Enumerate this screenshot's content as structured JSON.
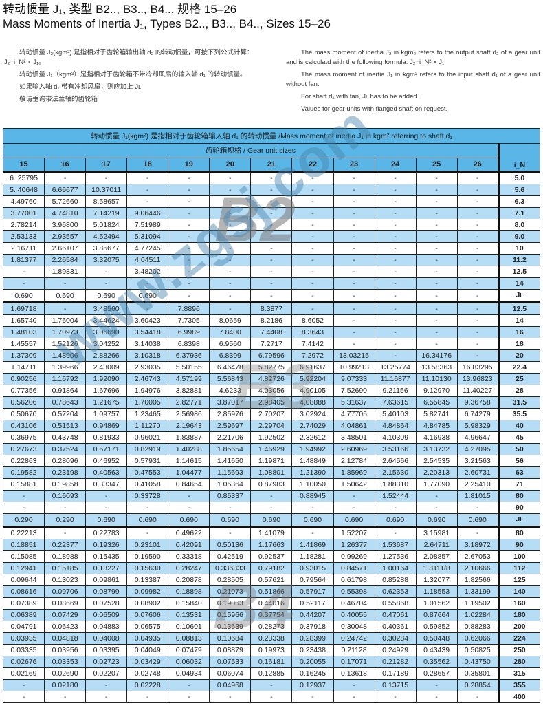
{
  "title_cn": "转动惯量 J₁, 类型 B2.., B3.., B4.., 规格 15–26",
  "title_en": "Mass Moments of Inertia J₁, Types B2.., B3.., B4.., Sizes 15–26",
  "intro_cn": [
    "转动惯量 J₂(kgm²) 是指相对于齿轮箱输出轴 d₂ 的转动惯量，可按下列公式计算：J₂=i_N² × J₁。",
    "转动惯量 J₁（kgm²）是指相对于齿轮箱不带冷却风扇的输入轴 d₁ 的转动惯量。",
    "如果输入轴 d₁ 带有冷却风扇，则应加上 Jʟ",
    "敬请垂询带法兰轴的齿轮箱"
  ],
  "intro_en": [
    "The mass moment of inertia J₂ in kgm₂ refers to the output shaft d₂ of a gear unit and is calculatd with the following formula: J₂=i_N² × J₁.",
    "The mass moment of inertia J₁ in kgm² refers to the input shaft d₁ of a gear unit without fan.",
    "For shaft d₁ with fan, Jʟ has to be added.",
    "Values for gear units with flanged shaft on request."
  ],
  "table": {
    "caption": "转动惯量 J₁(kgm²) 是指相对于齿轮箱输入轴 d₁ 的转动惯量 /Mass moment of inertia J₁ in kgm² referring to shaft d₁",
    "sizes_label": "齿轮箱规格 / Gear unit sizes",
    "columns": [
      "15",
      "16",
      "17",
      "18",
      "19",
      "20",
      "21",
      "22",
      "23",
      "24",
      "25",
      "26"
    ],
    "ratio_header": "i_N",
    "sections": [
      {
        "type": "B2",
        "rows": [
          {
            "i": "5.0",
            "v": [
              "6. 25795",
              "-",
              "-",
              "-",
              "-",
              "-",
              "-",
              "-",
              "-",
              "-",
              "-",
              "-"
            ]
          },
          {
            "i": "5.6",
            "v": [
              "5. 40648",
              "6.66677",
              "10.37011",
              "-",
              "-",
              "-",
              "-",
              "-",
              "-",
              "-",
              "-",
              "-"
            ]
          },
          {
            "i": "6.3",
            "v": [
              "4.49760",
              "5.72660",
              "8.58657",
              "-",
              "-",
              "-",
              "-",
              "-",
              "-",
              "-",
              "-",
              "-"
            ]
          },
          {
            "i": "7.1",
            "v": [
              "3.77001",
              "4.74810",
              "7.14219",
              "9.06446",
              "-",
              "-",
              "-",
              "-",
              "-",
              "-",
              "-",
              "-"
            ]
          },
          {
            "i": "8.0",
            "v": [
              "2.78214",
              "3.96800",
              "5.01824",
              "7.51989",
              "-",
              "-",
              "-",
              "-",
              "-",
              "-",
              "-",
              "-"
            ]
          },
          {
            "i": "9.0",
            "v": [
              "2.53133",
              "2.93557",
              "4.52494",
              "5.31094",
              "-",
              "-",
              "-",
              "-",
              "-",
              "-",
              "-",
              "-"
            ]
          },
          {
            "i": "10",
            "v": [
              "2.16711",
              "2.66107",
              "3.85677",
              "4.77245",
              "-",
              "-",
              "-",
              "-",
              "-",
              "-",
              "-",
              "-"
            ]
          },
          {
            "i": "11.2",
            "v": [
              "1.81377",
              "2.26584",
              "3.32075",
              "4.04511",
              "-",
              "-",
              "-",
              "-",
              "-",
              "-",
              "-",
              "-"
            ]
          },
          {
            "i": "12.5",
            "v": [
              "-",
              "1.89831",
              "-",
              "3.48202",
              "-",
              "-",
              "-",
              "-",
              "-",
              "-",
              "-",
              "-"
            ]
          },
          {
            "i": "14",
            "v": [
              "-",
              "-",
              "-",
              "-",
              "-",
              "-",
              "-",
              "-",
              "-",
              "-",
              "-",
              "-"
            ]
          },
          {
            "i": "JL",
            "v": [
              "0.690",
              "0.690",
              "0.690",
              "0.690",
              "-",
              "-",
              "-",
              "-",
              "-",
              "-",
              "-",
              "-"
            ]
          }
        ]
      },
      {
        "type": "B3",
        "rows": [
          {
            "i": "12.5",
            "v": [
              "1.69718",
              "-",
              "3.48560",
              "-",
              "7.8896",
              "-",
              "8.3877",
              "-",
              "-",
              "-",
              "-",
              "-"
            ]
          },
          {
            "i": "14",
            "v": [
              "1.65740",
              "1.76004",
              "3.44624",
              "3.60423",
              "7.7305",
              "8.0659",
              "8.2186",
              "8.6052",
              "-",
              "-",
              "-",
              "-"
            ]
          },
          {
            "i": "16",
            "v": [
              "1.48103",
              "1.70973",
              "3.06690",
              "3.54418",
              "6.9989",
              "7.8400",
              "7.4408",
              "8.3643",
              "-",
              "-",
              "-",
              "-"
            ]
          },
          {
            "i": "18",
            "v": [
              "1.45557",
              "1.52126",
              "3.04252",
              "3.14038",
              "6.8398",
              "6.9560",
              "7.2717",
              "7.4142",
              "-",
              "-",
              "-",
              "-"
            ]
          },
          {
            "i": "20",
            "v": [
              "1.37309",
              "1.48906",
              "2.88266",
              "3.10318",
              "6.37936",
              "6.8399",
              "6.79596",
              "7.2972",
              "13.03215",
              "-",
              "16.34176",
              "-"
            ]
          },
          {
            "i": "22.4",
            "v": [
              "1.14711",
              "1.39966",
              "2.43009",
              "2.93035",
              "5.50155",
              "6.46478",
              "5.82775",
              "6.91637",
              "10.99213",
              "13.25774",
              "13.58363",
              "16.83295"
            ]
          },
          {
            "i": "25",
            "v": [
              "0.90256",
              "1.16792",
              "1.92090",
              "2.46743",
              "4.57199",
              "5.56843",
              "4.82726",
              "5.92204",
              "9.07333",
              "11.16877",
              "11.10130",
              "13.96823"
            ]
          },
          {
            "i": "28",
            "v": [
              "0.77356",
              "0.91864",
              "1.67696",
              "1.94976",
              "3.82881",
              "4.6233",
              "4.03056",
              "4.90105",
              "7.52690",
              "9.21156",
              "9.12970",
              "11.40227"
            ]
          },
          {
            "i": "31.5",
            "v": [
              "0.56206",
              "0.78643",
              "1.21675",
              "1.70005",
              "2.82771",
              "3.87017",
              "2.98405",
              "4.08888",
              "5.31637",
              "7.63615",
              "6.55845",
              "9.36758"
            ]
          },
          {
            "i": "35.5",
            "v": [
              "0.50670",
              "0.57204",
              "1.09757",
              "1.23465",
              "2.56986",
              "2.85976",
              "2.70207",
              "3.02924",
              "4.77705",
              "5.40103",
              "5.82741",
              "6.74279"
            ]
          },
          {
            "i": "40",
            "v": [
              "0.43106",
              "0.51513",
              "0.94869",
              "1.11270",
              "2.19643",
              "2.59697",
              "2.29704",
              "2.74029",
              "4.04861",
              "4.84864",
              "4.84785",
              "5.98329"
            ]
          },
          {
            "i": "45",
            "v": [
              "0.36975",
              "0.43748",
              "0.81933",
              "0.96021",
              "1.83887",
              "2.21706",
              "1.92502",
              "2.32612",
              "3.48501",
              "4.10309",
              "4.16938",
              "4.96647"
            ]
          },
          {
            "i": "50",
            "v": [
              "0.27673",
              "0.37524",
              "0.57171",
              "0.82919",
              "1.40288",
              "1.85654",
              "1.46929",
              "1.94992",
              "2.60969",
              "3.53166",
              "3.13732",
              "4.27095"
            ]
          },
          {
            "i": "56",
            "v": [
              "0.22863",
              "0.28096",
              "0.46952",
              "0.57931",
              "1.14615",
              "1.41650",
              "1.19871",
              "1.48849",
              "2.12784",
              "2.64566",
              "2.54535",
              "3.21563"
            ]
          },
          {
            "i": "63",
            "v": [
              "0.19582",
              "0.23198",
              "0.40563",
              "0.47553",
              "1.04477",
              "1.15693",
              "1.08801",
              "1.21390",
              "1.85969",
              "2.15630",
              "2.20313",
              "2.60731"
            ]
          },
          {
            "i": "71",
            "v": [
              "0.15881",
              "0.19858",
              "0.33347",
              "0.41058",
              "0.84654",
              "1.05364",
              "0.87983",
              "1.10050",
              "1.50642",
              "1.88310",
              "1.77090",
              "2.25410"
            ]
          },
          {
            "i": "80",
            "v": [
              "-",
              "0.16093",
              "-",
              "0.33728",
              "-",
              "0.85337",
              "-",
              "0.88945",
              "-",
              "1.52444",
              "-",
              "1.81015"
            ]
          },
          {
            "i": "90",
            "v": [
              "-",
              "-",
              "-",
              "-",
              "-",
              "-",
              "-",
              "-",
              "-",
              "-",
              "-",
              "-"
            ]
          },
          {
            "i": "JL",
            "v": [
              "0.290",
              "0.290",
              "0.690",
              "0.690",
              "0.690",
              "0.690",
              "0.690",
              "0.690",
              "0.690",
              "0.690",
              "0.690",
              "0.690"
            ]
          }
        ]
      },
      {
        "type": "B4",
        "rows": [
          {
            "i": "80",
            "v": [
              "0.22213",
              "-",
              "0.22783",
              "-",
              "0.49622",
              "-",
              "1.41079",
              "-",
              "1.52207",
              "-",
              "3.15981",
              "-"
            ]
          },
          {
            "i": "90",
            "v": [
              "0.18851",
              "0.22377",
              "0.19326",
              "0.23101",
              "0.42091",
              "0.50136",
              "1.17663",
              "1.41869",
              "1.26377",
              "1.53687",
              "2.64711",
              "3.18972"
            ]
          },
          {
            "i": "100",
            "v": [
              "0.15085",
              "0.18988",
              "0.15435",
              "0.19590",
              "0.33318",
              "0.42519",
              "0.92537",
              "1.18281",
              "0.99269",
              "1.27536",
              "2.08857",
              "2.67053"
            ]
          },
          {
            "i": "112",
            "v": [
              "0.12941",
              "0.15185",
              "0.13227",
              "0.15630",
              "0.28247",
              "0.336333",
              "0.79182",
              "0.93015",
              "0.84571",
              "1.00164",
              "1.8111/8",
              "2.10666"
            ]
          },
          {
            "i": "125",
            "v": [
              "0.09644",
              "0.13023",
              "0.09861",
              "0.13387",
              "0.20878",
              "0.28505",
              "0.57621",
              "0.79564",
              "0.61798",
              "0.85288",
              "1.32077",
              "1.82566"
            ]
          },
          {
            "i": "140",
            "v": [
              "0.08616",
              "0.09706",
              "0.08799",
              "0.09982",
              "0.18898",
              "0.21073",
              "0.51866",
              "0.57917",
              "0.55398",
              "0.62353",
              "1.18553",
              "1.33199"
            ]
          },
          {
            "i": "160",
            "v": [
              "0.07389",
              "0.08669",
              "0.07528",
              "0.08902",
              "0.15840",
              "0.19063",
              "0.44016",
              "0.52117",
              "0.46704",
              "0.55868",
              "1.01562",
              "1.19502"
            ]
          },
          {
            "i": "180",
            "v": [
              "0.06389",
              "0.07429",
              "0.06509",
              "0.07606",
              "0.13531",
              "0.15966",
              "0.37754",
              "0.44207",
              "0.40055",
              "0.47061",
              "0.87664",
              "1.02284"
            ]
          },
          {
            "i": "200",
            "v": [
              "0.04791",
              "0.06423",
              "0.04883",
              "0.06575",
              "0.10601",
              "0.13639",
              "0.28273",
              "0.37918",
              "0.30048",
              "0.40361",
              "0.59852",
              "0.88283"
            ]
          },
          {
            "i": "224",
            "v": [
              "0.03935",
              "0.04818",
              "0.04008",
              "0.04935",
              "0.08813",
              "0.10684",
              "0.23338",
              "0.28399",
              "0.24742",
              "0.30284",
              "0.50448",
              "0.62066"
            ]
          },
          {
            "i": "250",
            "v": [
              "0.03335",
              "0.03956",
              "0.03395",
              "0.04049",
              "0.07479",
              "0.08879",
              "0.19973",
              "0.23438",
              "0.21128",
              "0.24929",
              "0.43439",
              "0.50825"
            ]
          },
          {
            "i": "280",
            "v": [
              "0.02676",
              "0.03353",
              "0.02723",
              "0.03429",
              "0.06032",
              "0.07533",
              "0.16181",
              "0.20055",
              "0.17071",
              "0.21282",
              "0.35562",
              "0.43750"
            ]
          },
          {
            "i": "315",
            "v": [
              "0.02169",
              "0.02690",
              "0.02207",
              "0.02748",
              "0.04934",
              "0.06074",
              "0.12885",
              "0.16245",
              "0.13618",
              "0.17189",
              "0.28657",
              "0.35801"
            ]
          },
          {
            "i": "355",
            "v": [
              "-",
              "0.02180",
              "-",
              "0.02228",
              "-",
              "0.04968",
              "-",
              "0.12937",
              "-",
              "0.13715",
              "-",
              "0.28854"
            ]
          },
          {
            "i": "400",
            "v": [
              "-",
              "-",
              "-",
              "-",
              "-",
              "-",
              "-",
              "-",
              "-",
              "-",
              "-",
              "-"
            ]
          }
        ]
      }
    ]
  },
  "watermarks": {
    "b2": "B2",
    "b3": "B3",
    "b4": "B4",
    "url": "www.zgsj.com"
  },
  "colors": {
    "header": "#5ab6e6",
    "stripe": "#b5ddf5"
  }
}
